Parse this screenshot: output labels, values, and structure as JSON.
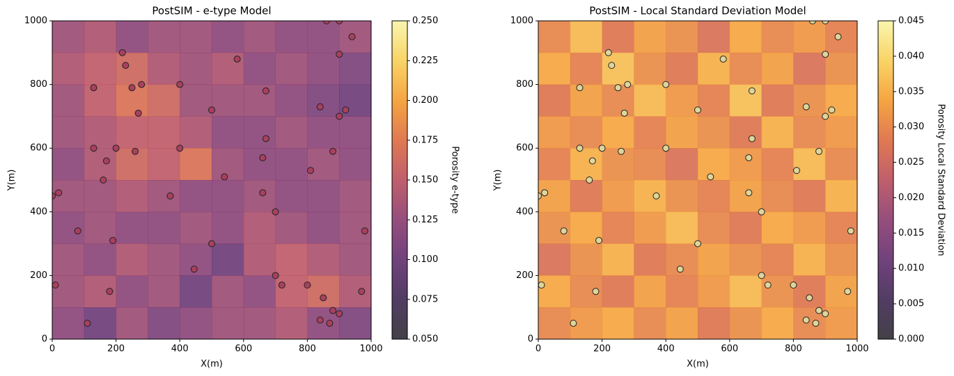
{
  "chart_data": [
    {
      "type": "heatmap",
      "title": "PostSIM - e-type Model",
      "xlabel": "X(m)",
      "ylabel": "Y(m)",
      "colorbar_label": "Porosity e-type",
      "xlim": [
        0,
        1000
      ],
      "ylim": [
        0,
        1000
      ],
      "xticks": [
        0,
        200,
        400,
        600,
        800,
        1000
      ],
      "yticks": [
        0,
        200,
        400,
        600,
        800,
        1000
      ],
      "vlim": [
        0.05,
        0.25
      ],
      "cticks": [
        {
          "value": 0.05,
          "label": "0.050"
        },
        {
          "value": 0.075,
          "label": "0.075"
        },
        {
          "value": 0.1,
          "label": "0.100"
        },
        {
          "value": 0.125,
          "label": "0.125"
        },
        {
          "value": 0.15,
          "label": "0.150"
        },
        {
          "value": 0.175,
          "label": "0.175"
        },
        {
          "value": 0.2,
          "label": "0.200"
        },
        {
          "value": 0.225,
          "label": "0.225"
        },
        {
          "value": 0.25,
          "label": "0.250"
        }
      ],
      "colormap": [
        "#2e2b33",
        "#3f2752",
        "#612d6e",
        "#8a3a6e",
        "#b84d5c",
        "#dc6a3f",
        "#f49b2e",
        "#f8cf56",
        "#f8f5a6"
      ],
      "z": [
        [
          0.13,
          0.14,
          0.12,
          0.13,
          0.13,
          0.12,
          0.13,
          0.12,
          0.12,
          0.13
        ],
        [
          0.14,
          0.15,
          0.16,
          0.14,
          0.13,
          0.14,
          0.12,
          0.13,
          0.12,
          0.11
        ],
        [
          0.13,
          0.15,
          0.17,
          0.16,
          0.13,
          0.13,
          0.13,
          0.12,
          0.11,
          0.1
        ],
        [
          0.13,
          0.14,
          0.15,
          0.15,
          0.14,
          0.12,
          0.12,
          0.13,
          0.12,
          0.12
        ],
        [
          0.12,
          0.14,
          0.16,
          0.15,
          0.17,
          0.13,
          0.12,
          0.12,
          0.13,
          0.12
        ],
        [
          0.13,
          0.13,
          0.14,
          0.13,
          0.12,
          0.12,
          0.13,
          0.12,
          0.12,
          0.13
        ],
        [
          0.12,
          0.13,
          0.12,
          0.12,
          0.13,
          0.12,
          0.14,
          0.13,
          0.12,
          0.13
        ],
        [
          0.13,
          0.12,
          0.14,
          0.13,
          0.12,
          0.1,
          0.14,
          0.15,
          0.14,
          0.13
        ],
        [
          0.13,
          0.14,
          0.12,
          0.13,
          0.1,
          0.13,
          0.12,
          0.15,
          0.16,
          0.14
        ],
        [
          0.12,
          0.1,
          0.13,
          0.11,
          0.12,
          0.13,
          0.13,
          0.14,
          0.12,
          0.11
        ]
      ],
      "points": {
        "color": "#a8405e",
        "x": [
          0,
          20,
          10,
          80,
          110,
          130,
          130,
          160,
          170,
          180,
          190,
          200,
          220,
          230,
          250,
          260,
          270,
          280,
          370,
          400,
          400,
          445,
          500,
          500,
          540,
          580,
          660,
          660,
          670,
          670,
          700,
          700,
          720,
          800,
          810,
          840,
          840,
          850,
          860,
          870,
          880,
          880,
          900,
          900,
          900,
          900,
          920,
          940,
          970,
          980
        ],
        "y": [
          450,
          460,
          170,
          340,
          50,
          790,
          600,
          500,
          560,
          150,
          310,
          600,
          900,
          860,
          790,
          590,
          710,
          800,
          450,
          800,
          600,
          220,
          720,
          300,
          510,
          880,
          570,
          460,
          630,
          780,
          400,
          200,
          170,
          170,
          530,
          730,
          60,
          130,
          1000,
          50,
          590,
          90,
          1000,
          895,
          700,
          80,
          720,
          950,
          150,
          340
        ]
      }
    },
    {
      "type": "heatmap",
      "title": "PostSIM - Local Standard Deviation Model",
      "xlabel": "X(m)",
      "ylabel": "Y(m)",
      "colorbar_label": "Porosity Local Standard Deviation",
      "xlim": [
        0,
        1000
      ],
      "ylim": [
        0,
        1000
      ],
      "xticks": [
        0,
        200,
        400,
        600,
        800,
        1000
      ],
      "yticks": [
        0,
        200,
        400,
        600,
        800,
        1000
      ],
      "vlim": [
        0,
        0.045
      ],
      "cticks": [
        {
          "value": 0,
          "label": "0.000"
        },
        {
          "value": 0.005,
          "label": "0.005"
        },
        {
          "value": 0.01,
          "label": "0.010"
        },
        {
          "value": 0.015,
          "label": "0.015"
        },
        {
          "value": 0.02,
          "label": "0.020"
        },
        {
          "value": 0.025,
          "label": "0.025"
        },
        {
          "value": 0.03,
          "label": "0.030"
        },
        {
          "value": 0.035,
          "label": "0.035"
        },
        {
          "value": 0.04,
          "label": "0.040"
        },
        {
          "value": 0.045,
          "label": "0.045"
        }
      ],
      "colormap": [
        "#2e2b33",
        "#3f2752",
        "#612d6e",
        "#8a3a6e",
        "#b84d5c",
        "#dc6a3f",
        "#f49b2e",
        "#f8cf56",
        "#f8f5a6"
      ],
      "z": [
        [
          0.03,
          0.036,
          0.028,
          0.033,
          0.031,
          0.027,
          0.034,
          0.03,
          0.032,
          0.029
        ],
        [
          0.034,
          0.029,
          0.037,
          0.031,
          0.028,
          0.035,
          0.03,
          0.033,
          0.027,
          0.031
        ],
        [
          0.028,
          0.033,
          0.03,
          0.036,
          0.032,
          0.029,
          0.037,
          0.028,
          0.031,
          0.034
        ],
        [
          0.032,
          0.03,
          0.034,
          0.029,
          0.033,
          0.031,
          0.028,
          0.035,
          0.03,
          0.032
        ],
        [
          0.029,
          0.035,
          0.031,
          0.03,
          0.027,
          0.034,
          0.032,
          0.029,
          0.036,
          0.03
        ],
        [
          0.033,
          0.028,
          0.032,
          0.035,
          0.031,
          0.029,
          0.033,
          0.03,
          0.028,
          0.035
        ],
        [
          0.031,
          0.034,
          0.029,
          0.032,
          0.036,
          0.03,
          0.028,
          0.034,
          0.032,
          0.029
        ],
        [
          0.027,
          0.031,
          0.035,
          0.028,
          0.03,
          0.033,
          0.031,
          0.029,
          0.035,
          0.031
        ],
        [
          0.034,
          0.03,
          0.028,
          0.033,
          0.029,
          0.032,
          0.036,
          0.031,
          0.028,
          0.033
        ],
        [
          0.03,
          0.032,
          0.034,
          0.03,
          0.033,
          0.028,
          0.031,
          0.034,
          0.03,
          0.032
        ]
      ],
      "points": {
        "color": "#ddd59a",
        "x": [
          0,
          20,
          10,
          80,
          110,
          130,
          130,
          160,
          170,
          180,
          190,
          200,
          220,
          230,
          250,
          260,
          270,
          280,
          370,
          400,
          400,
          445,
          500,
          500,
          540,
          580,
          660,
          660,
          670,
          670,
          700,
          700,
          720,
          800,
          810,
          840,
          840,
          850,
          860,
          870,
          880,
          880,
          900,
          900,
          900,
          900,
          920,
          940,
          970,
          980
        ],
        "y": [
          450,
          460,
          170,
          340,
          50,
          790,
          600,
          500,
          560,
          150,
          310,
          600,
          900,
          860,
          790,
          590,
          710,
          800,
          450,
          800,
          600,
          220,
          720,
          300,
          510,
          880,
          570,
          460,
          630,
          780,
          400,
          200,
          170,
          170,
          530,
          730,
          60,
          130,
          1000,
          50,
          590,
          90,
          1000,
          895,
          700,
          80,
          720,
          950,
          150,
          340
        ]
      }
    }
  ]
}
